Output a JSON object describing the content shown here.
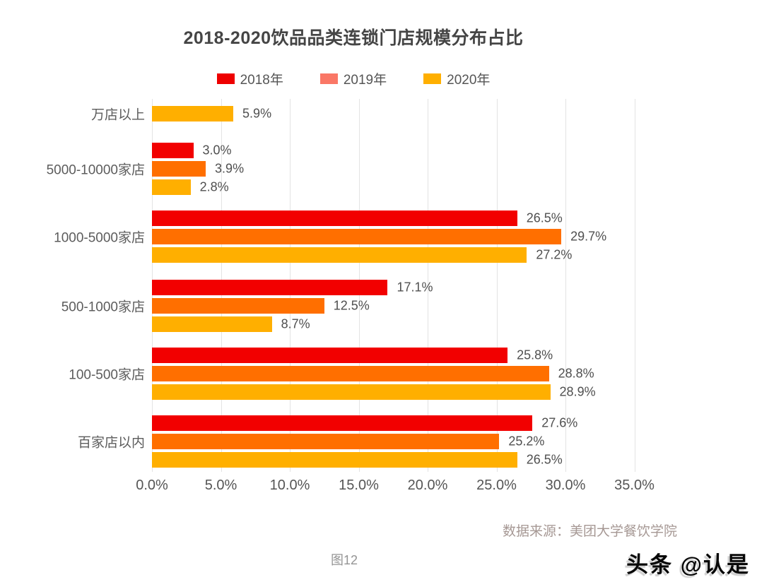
{
  "title": "2018-2020饮品品类连锁门店规模分布占比",
  "legend": {
    "items": [
      {
        "label": "2018年",
        "swatch": "#ee0000"
      },
      {
        "label": "2019年",
        "swatch": "#fa7766"
      },
      {
        "label": "2020年",
        "swatch": "#ffaf00"
      }
    ]
  },
  "chart_data": {
    "type": "bar",
    "orientation": "horizontal",
    "title": "2018-2020饮品品类连锁门店规模分布占比",
    "categories": [
      "万店以上",
      "5000-10000家店",
      "1000-5000家店",
      "500-1000家店",
      "100-500家店",
      "百家店以内"
    ],
    "series": [
      {
        "name": "2018年",
        "color": "#f20000",
        "values": [
          null,
          3.0,
          26.5,
          17.1,
          25.8,
          27.6
        ]
      },
      {
        "name": "2019年",
        "color": "#ff6f00",
        "values": [
          null,
          3.9,
          29.7,
          12.5,
          28.8,
          25.2
        ]
      },
      {
        "name": "2020年",
        "color": "#ffaf00",
        "values": [
          5.9,
          2.8,
          27.2,
          8.7,
          28.9,
          26.5
        ]
      }
    ],
    "value_suffix": "%",
    "data_labels": true,
    "x_tick_labels": [
      "0.0%",
      "5.0%",
      "10.0%",
      "15.0%",
      "20.0%",
      "25.0%",
      "30.0%",
      "35.0%"
    ],
    "x_tick_values": [
      0,
      5,
      10,
      15,
      20,
      25,
      30,
      35
    ],
    "xlim": [
      0,
      39.7
    ],
    "grid": true,
    "legend_position": "top"
  },
  "footer": {
    "source": "数据来源：美团大学餐饮学院",
    "caption": "图12",
    "watermark": "头条 @认是"
  }
}
